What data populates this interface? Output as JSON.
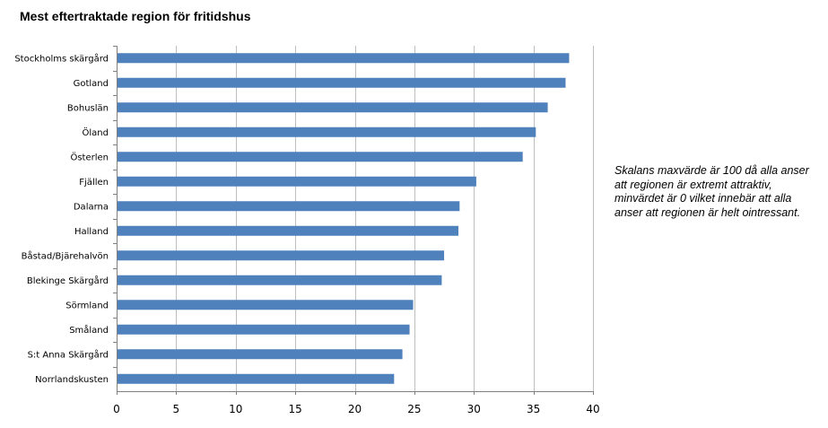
{
  "chart_data": {
    "type": "bar",
    "orientation": "horizontal",
    "title": "Mest eftertraktade region för fritidshus",
    "xlabel": "",
    "ylabel": "",
    "categories": [
      "Stockholms skärgård",
      "Gotland",
      "Bohuslän",
      "Öland",
      "Österlen",
      "Fjällen",
      "Dalarna",
      "Halland",
      "Båstad/Bjärehalvön",
      "Blekinge Skärgård",
      "Sörmland",
      "Småland",
      "S:t Anna Skärgård",
      "Norrlandskusten"
    ],
    "values": [
      38.0,
      37.7,
      36.2,
      35.2,
      34.1,
      30.2,
      28.8,
      28.7,
      27.5,
      27.3,
      24.9,
      24.6,
      24.0,
      23.3
    ],
    "xlim": [
      0,
      40
    ],
    "xticks": [
      0,
      5,
      10,
      15,
      20,
      25,
      30,
      35,
      40
    ],
    "grid": "vertical",
    "legend": "none",
    "bar_color": "#4F81BD",
    "grid_color": "#BFBFBF",
    "annotation": "Skalans maxvärde är 100 då alla anser att regionen är extremt attraktiv, minvärdet är 0 vilket innebär att alla anser att regionen är helt ointressant."
  }
}
